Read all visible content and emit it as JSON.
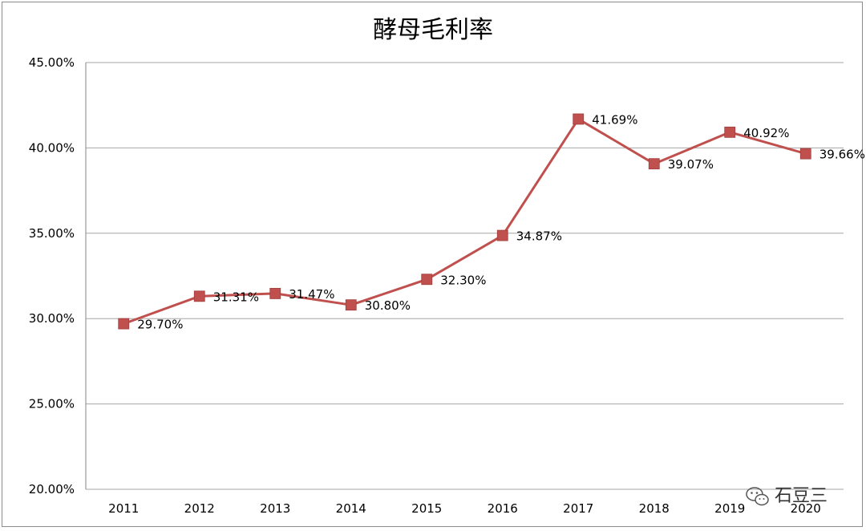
{
  "chart_data": {
    "type": "line",
    "title": "酵母毛利率",
    "categories": [
      "2011",
      "2012",
      "2013",
      "2014",
      "2015",
      "2016",
      "2017",
      "2018",
      "2019",
      "2020"
    ],
    "series": [
      {
        "values": [
          29.7,
          31.31,
          31.47,
          30.8,
          32.3,
          34.87,
          41.69,
          39.07,
          40.92,
          39.66
        ],
        "labels": [
          "29.70%",
          "31.31%",
          "31.47%",
          "30.80%",
          "32.30%",
          "34.87%",
          "41.69%",
          "39.07%",
          "40.92%",
          "39.66%"
        ],
        "color": "#c0504d",
        "marker": "square"
      }
    ],
    "y_ticks": [
      "20.00%",
      "25.00%",
      "30.00%",
      "35.00%",
      "40.00%",
      "45.00%"
    ],
    "y_tick_values": [
      20,
      25,
      30,
      35,
      40,
      45
    ],
    "ylim": [
      20,
      45
    ],
    "grid": true,
    "gridline_color": "#a6a6a6",
    "legend": "none"
  },
  "watermark": {
    "icon": "wechat-icon",
    "text": "石豆三"
  }
}
